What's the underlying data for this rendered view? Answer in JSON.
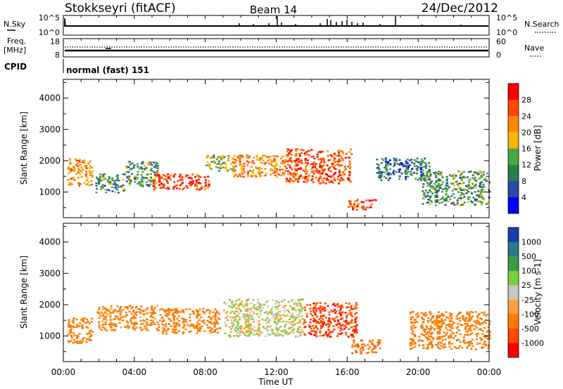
{
  "header": {
    "site": "Stokkseyri (fitACF)",
    "beam": "Beam 14",
    "date": "24/Dec/2012"
  },
  "status_strip": {
    "nsky_label": "N.Sky",
    "nsearch_label": "N.Search",
    "nsky_ticks": [
      "10^5",
      "10^0"
    ],
    "nsearch_ticks": [
      "10^5",
      "10^0"
    ],
    "freq_label_top": "Freq.",
    "freq_label_bottom": "[MHz]",
    "freq_ticks": [
      "18",
      "8"
    ],
    "nave_label": "Nave",
    "nave_ticks": [
      "60",
      "0"
    ],
    "cpid_label": "CPID",
    "cpid_value": "normal (fast) 151"
  },
  "chart_data": [
    {
      "type": "heatmap",
      "title": "",
      "ylabel": "Slant Range [km]",
      "xlabel": "",
      "ylim": [
        180,
        4600
      ],
      "yticks": [
        1000,
        2000,
        3000,
        4000
      ],
      "colorbar": {
        "label": "Power [dB]",
        "ticks": [
          "28",
          "24",
          "20",
          "16",
          "12",
          "8",
          "4"
        ],
        "colors": [
          "#ff0000",
          "#ff4a00",
          "#ff8800",
          "#f5b800",
          "#48a848",
          "#2d7d4a",
          "#2b4aa8",
          "#0000ff"
        ]
      },
      "echo_regions": [
        {
          "t0": 0.2,
          "t1": 1.6,
          "r0": 1200,
          "r1": 2100,
          "power": 22
        },
        {
          "t0": 1.8,
          "t1": 3.4,
          "r0": 1000,
          "r1": 1600,
          "power": 12
        },
        {
          "t0": 3.5,
          "t1": 5.3,
          "r0": 1200,
          "r1": 2000,
          "power": 12
        },
        {
          "t0": 5.0,
          "t1": 8.2,
          "r0": 1100,
          "r1": 1600,
          "power": 28
        },
        {
          "t0": 8.0,
          "t1": 9.6,
          "r0": 1700,
          "r1": 2200,
          "power": 16
        },
        {
          "t0": 9.5,
          "t1": 12.5,
          "r0": 1500,
          "r1": 2200,
          "power": 22
        },
        {
          "t0": 12.5,
          "t1": 16.2,
          "r0": 1300,
          "r1": 2400,
          "power": 26
        },
        {
          "t0": 16.0,
          "t1": 17.6,
          "r0": 450,
          "r1": 800,
          "power": 26
        },
        {
          "t0": 17.6,
          "t1": 20.6,
          "r0": 1400,
          "r1": 2100,
          "power": 8
        },
        {
          "t0": 20.2,
          "t1": 24.0,
          "r0": 600,
          "r1": 1700,
          "power": 12
        }
      ]
    },
    {
      "type": "heatmap",
      "title": "",
      "ylabel": "Slant Range [km]",
      "xlabel": "Time UT",
      "ylim": [
        180,
        4600
      ],
      "yticks": [
        1000,
        2000,
        3000,
        4000
      ],
      "xticks": [
        "00:00",
        "04:00",
        "08:00",
        "12:00",
        "16:00",
        "20:00",
        "00:00"
      ],
      "colorbar": {
        "label": "Velocity [m s-1]",
        "ticks": [
          "1000",
          "500",
          "100",
          "25",
          "-25",
          "-100",
          "-500",
          "-1000"
        ],
        "colors": [
          "#1a3fa8",
          "#2b7a8a",
          "#3a9a4a",
          "#7ccf3a",
          "#c8c8c0",
          "#ffa040",
          "#ff7a00",
          "#ff4a00",
          "#ff0000"
        ]
      },
      "echo_regions": [
        {
          "t0": 0.2,
          "t1": 1.6,
          "r0": 800,
          "r1": 1600,
          "velocity": -300
        },
        {
          "t0": 1.8,
          "t1": 5.3,
          "r0": 1200,
          "r1": 2000,
          "velocity": -150
        },
        {
          "t0": 5.3,
          "t1": 8.8,
          "r0": 1100,
          "r1": 1900,
          "velocity": -250
        },
        {
          "t0": 9.0,
          "t1": 13.5,
          "r0": 1000,
          "r1": 2200,
          "velocity": 0
        },
        {
          "t0": 13.5,
          "t1": 16.5,
          "r0": 1000,
          "r1": 2100,
          "velocity": -800
        },
        {
          "t0": 16.2,
          "t1": 17.8,
          "r0": 450,
          "r1": 900,
          "velocity": -400
        },
        {
          "t0": 19.5,
          "t1": 24.0,
          "r0": 600,
          "r1": 1800,
          "velocity": -200
        }
      ]
    }
  ]
}
